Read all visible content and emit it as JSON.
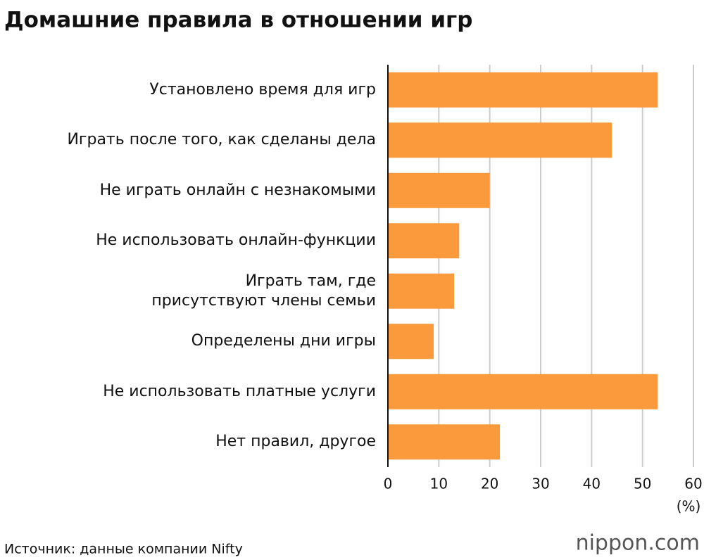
{
  "chart_data": {
    "type": "bar",
    "orientation": "horizontal",
    "title": "Домашние правила в отношении игр",
    "categories": [
      "Установлено время для игр",
      "Играть после того, как сделаны дела",
      "Не играть онлайн с незнакомыми",
      "Не использовать онлайн-функции",
      "Играть там, где\nприсутствуют члены семьи",
      "Определены дни игры",
      "Не использовать платные услуги",
      "Нет правил, другое"
    ],
    "values": [
      53,
      44,
      20,
      14,
      13,
      9,
      53,
      22
    ],
    "color": "#fb9a3c",
    "xlim": [
      0,
      60
    ],
    "xticks": [
      0,
      10,
      20,
      30,
      40,
      50,
      60
    ],
    "x_unit": "(%)",
    "grid": true,
    "source": "Источник: данные компании Nifty",
    "logo": "nippon.com"
  }
}
